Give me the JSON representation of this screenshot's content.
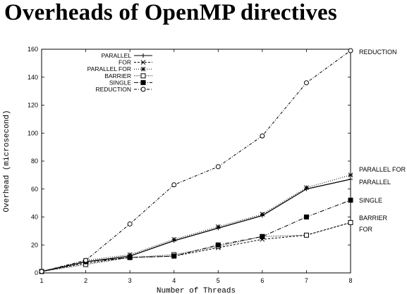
{
  "title": "Overheads of OpenMP directives",
  "chart_data": {
    "type": "line",
    "x": [
      1,
      2,
      3,
      4,
      5,
      6,
      7,
      8
    ],
    "xlabel": "Number of Threads",
    "ylabel": "Overhead (microsecond)",
    "xlim": [
      1,
      8
    ],
    "ylim": [
      0,
      160
    ],
    "xticks": [
      "1",
      "2",
      "3",
      "4",
      "5",
      "6",
      "7",
      "8"
    ],
    "yticks": [
      "0",
      "20",
      "40",
      "60",
      "80",
      "100",
      "120",
      "140",
      "160"
    ],
    "grid": false,
    "legend_position": "top-left",
    "series": [
      {
        "name": "PARALLEL",
        "marker": "plus",
        "dash": "",
        "values": [
          1,
          8,
          12,
          23,
          32,
          41,
          60,
          67
        ]
      },
      {
        "name": "FOR",
        "marker": "x",
        "dash": "3,2",
        "values": [
          1,
          7,
          11,
          12,
          18,
          24,
          27,
          36
        ]
      },
      {
        "name": "PARALLEL FOR",
        "marker": "star",
        "dash": "1,2",
        "values": [
          1,
          9,
          13,
          24,
          33,
          42,
          61,
          70
        ]
      },
      {
        "name": "BARRIER",
        "marker": "open-square",
        "dash": "1,1.5",
        "values": [
          1,
          6,
          11,
          13,
          19,
          26,
          27,
          36
        ]
      },
      {
        "name": "SINGLE",
        "marker": "filled-square",
        "dash": "6,2,1,2",
        "values": [
          1,
          8,
          11,
          12,
          20,
          26,
          40,
          52
        ]
      },
      {
        "name": "REDUCTION",
        "marker": "open-circle",
        "dash": "4,2,1,2",
        "values": [
          1,
          9,
          35,
          63,
          76,
          98,
          136,
          159
        ]
      }
    ],
    "annotations": [
      {
        "text": "REDUCTION",
        "y": 159
      },
      {
        "text": "PARALLEL FOR",
        "y": 74
      },
      {
        "text": "PARALLEL",
        "y": 66
      },
      {
        "text": "SINGLE",
        "y": 52
      },
      {
        "text": "BARRIER",
        "y": 39
      },
      {
        "text": "FOR",
        "y": 32
      }
    ]
  }
}
